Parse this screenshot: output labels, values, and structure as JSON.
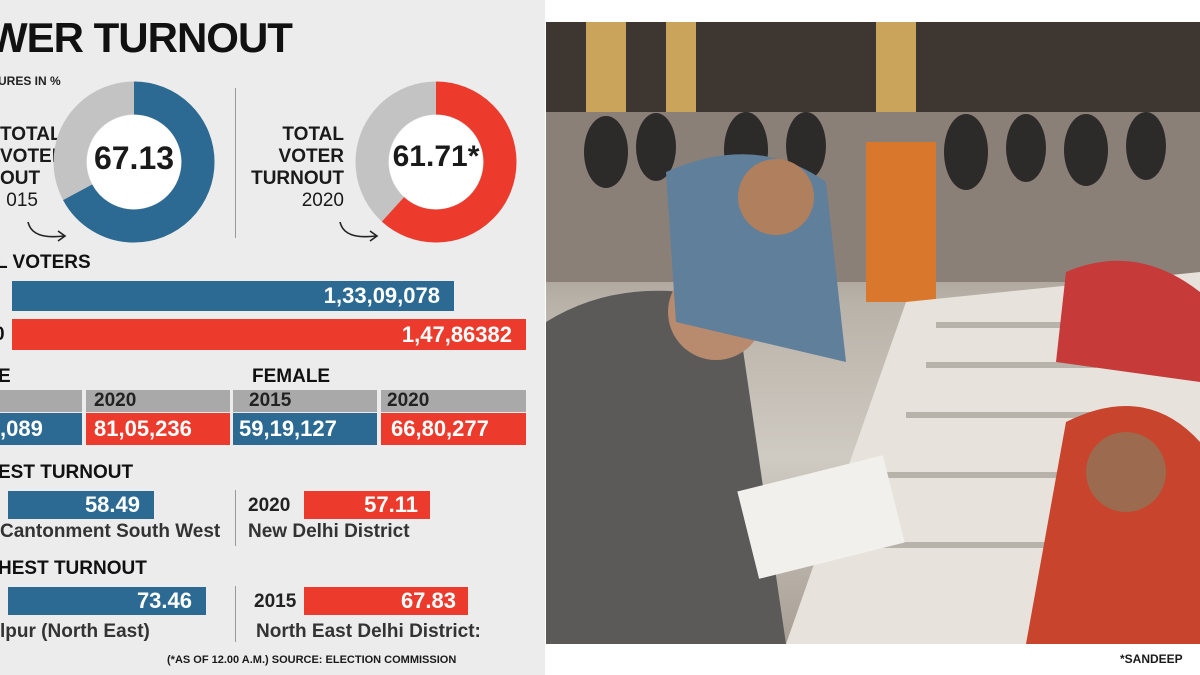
{
  "headline": "WER TURNOUT",
  "figures_note": "URES IN %",
  "donut_2015": {
    "value": "67.13",
    "label_lines": [
      "TOTAL",
      "VOTER",
      "OUT",
      "015"
    ],
    "fraction": 0.6713,
    "color": "#2c6a93"
  },
  "donut_2020": {
    "value": "61.71*",
    "label_lines": [
      "TOTAL",
      "VOTER",
      "TURNOUT",
      "2020"
    ],
    "fraction": 0.6171,
    "color": "#ec3b2d"
  },
  "total_voters": {
    "heading": "L  VOTERS",
    "row_2015_label": "",
    "row_2015_value": "1,33,09,078",
    "row_2020_label": "0",
    "row_2020_value": "1,47,86382"
  },
  "male": {
    "heading": "E",
    "y2015_value": ",089",
    "y2020_label": "2020",
    "y2020_value": "81,05,236"
  },
  "female": {
    "heading": "FEMALE",
    "y2015_label": "2015",
    "y2015_value": "59,19,127",
    "y2020_label": "2020",
    "y2020_value": "66,80,277"
  },
  "lowest": {
    "heading": "EST TURNOUT",
    "left_value": "58.49",
    "left_place": "Cantonment South West",
    "right_year": "2020",
    "right_value": "57.11",
    "right_place": "New Delhi District"
  },
  "highest": {
    "heading": "HEST TURNOUT",
    "left_value": "73.46",
    "left_place": "lpur (North East)",
    "right_year": "2015",
    "right_value": "67.83",
    "right_place": "North East Delhi District:"
  },
  "source": "(*AS OF 12.00 A.M.)  SOURCE: ELECTION COMMISSION",
  "photo_credit": "*SANDEEP",
  "colors": {
    "blue": "#2c6a93",
    "red": "#ec3b2d",
    "grey": "#a9a9a9",
    "donut_grey": "#c3c3c3"
  }
}
